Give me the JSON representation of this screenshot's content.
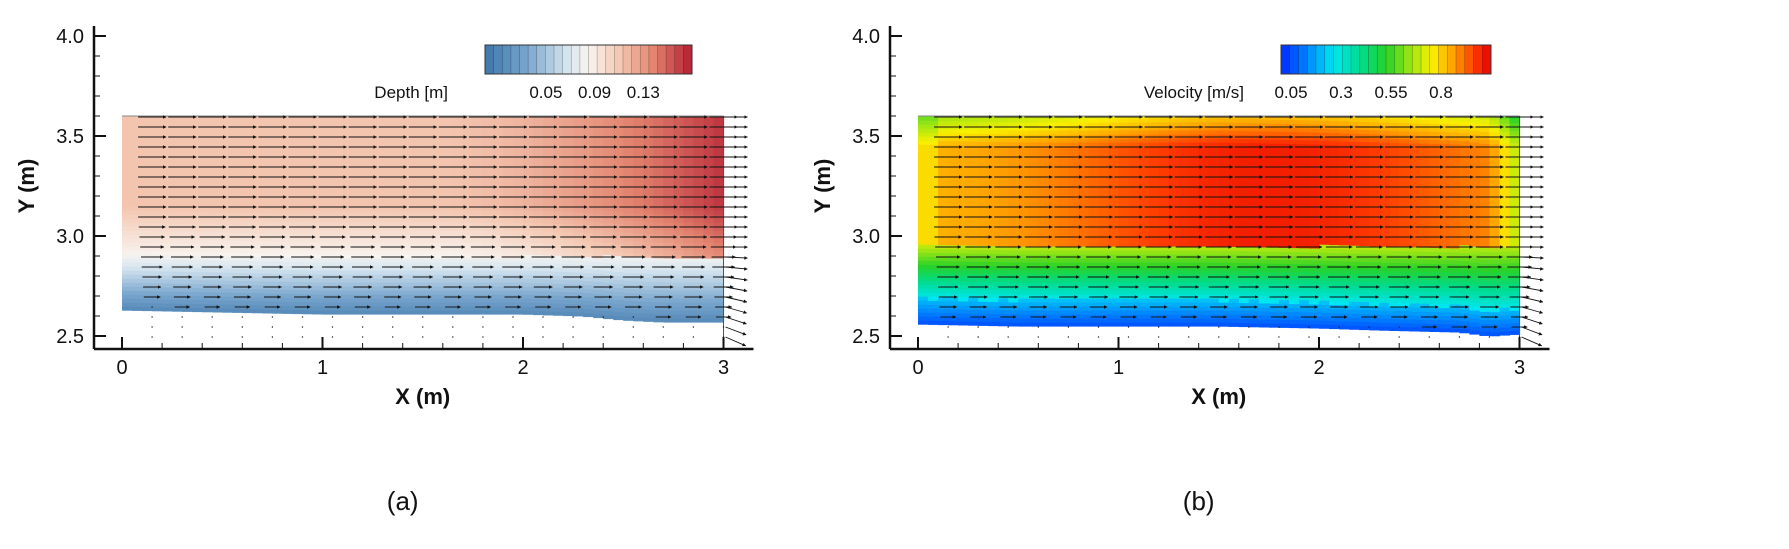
{
  "chart_data": [
    {
      "type": "heatmap",
      "panel_label": "(a)",
      "xlabel": "X (m)",
      "ylabel": "Y (m)",
      "xlim": [
        0,
        3
      ],
      "ylim": [
        2.45,
        4.05
      ],
      "xticks": [
        "0",
        "1",
        "2",
        "3"
      ],
      "yticks": [
        "2.5",
        "3.0",
        "3.5",
        "4.0"
      ],
      "colorbar": {
        "title": "Depth [m]",
        "ticks": [
          "0.05",
          "0.09",
          "0.13"
        ],
        "range": [
          0.0,
          0.17
        ],
        "colormap": "blue-white-red"
      },
      "domain_outline": {
        "x": [
          0,
          3
        ],
        "y_top": 3.6
      },
      "bottom_edge": [
        [
          0,
          2.63
        ],
        [
          0.5,
          2.62
        ],
        [
          1.0,
          2.61
        ],
        [
          1.5,
          2.61
        ],
        [
          2.0,
          2.61
        ],
        [
          2.3,
          2.6
        ],
        [
          2.5,
          2.58
        ],
        [
          2.7,
          2.57
        ],
        [
          3.0,
          2.57
        ]
      ],
      "overlay": "velocity vectors"
    },
    {
      "type": "heatmap",
      "panel_label": "(b)",
      "xlabel": "X (m)",
      "ylabel": "Y (m)",
      "xlim": [
        0,
        3
      ],
      "ylim": [
        2.45,
        4.05
      ],
      "xticks": [
        "0",
        "1",
        "2",
        "3"
      ],
      "yticks": [
        "2.5",
        "3.0",
        "3.5",
        "4.0"
      ],
      "colorbar": {
        "title": "Velocity [m/s]",
        "ticks": [
          "0.05",
          "0.3",
          "0.55",
          "0.8"
        ],
        "range": [
          0.0,
          1.05
        ],
        "colormap": "jet"
      },
      "domain_outline": {
        "x": [
          0,
          3
        ],
        "y_top": 3.6
      },
      "bottom_edge": [
        [
          0,
          2.56
        ],
        [
          0.5,
          2.55
        ],
        [
          1.0,
          2.55
        ],
        [
          1.5,
          2.55
        ],
        [
          2.0,
          2.54
        ],
        [
          2.3,
          2.53
        ],
        [
          2.7,
          2.52
        ],
        [
          2.85,
          2.5
        ],
        [
          3.0,
          2.51
        ]
      ],
      "overlay": "velocity vectors"
    }
  ]
}
